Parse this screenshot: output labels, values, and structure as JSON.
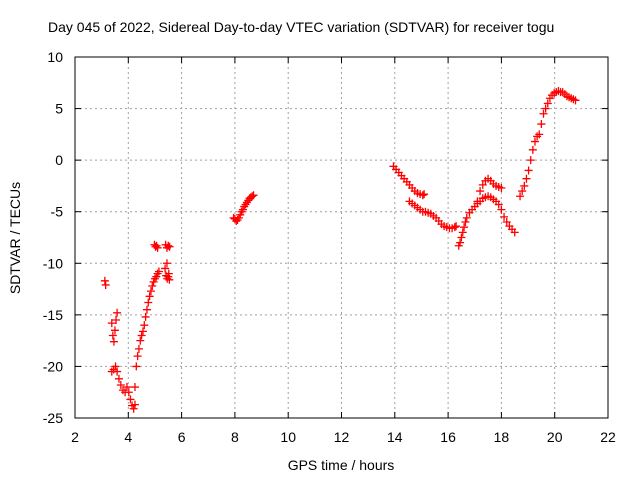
{
  "chart_data": {
    "type": "scatter",
    "title": "Day 045 of 2022, Sidereal Day-to-day VTEC variation (SDTVAR) for receiver togu",
    "xlabel": "GPS time / hours",
    "ylabel": "SDTVAR / TECUs",
    "xlim": [
      2,
      22
    ],
    "ylim": [
      -25,
      10
    ],
    "xticks": [
      2,
      4,
      6,
      8,
      10,
      12,
      14,
      16,
      18,
      20,
      22
    ],
    "yticks": [
      10,
      5,
      0,
      -5,
      -10,
      -15,
      -20,
      -25
    ],
    "grid": true,
    "marker": "plus",
    "color": "#ff0000",
    "segments": [
      {
        "name": "seg1",
        "x": [
          3.12,
          3.15
        ],
        "y": [
          -11.7,
          -12.1
        ]
      },
      {
        "name": "seg2",
        "x": [
          3.38,
          3.42,
          3.46,
          3.5,
          3.54,
          3.58
        ],
        "y": [
          -15.8,
          -17.0,
          -17.6,
          -16.5,
          -15.5,
          -14.8
        ]
      },
      {
        "name": "seg3",
        "x": [
          3.38,
          3.45,
          3.52,
          3.58,
          3.65,
          3.72,
          3.8,
          3.88,
          3.95,
          4.02,
          4.08,
          4.14,
          4.2,
          4.25
        ],
        "y": [
          -20.5,
          -20.3,
          -20.0,
          -20.5,
          -21.2,
          -21.8,
          -22.3,
          -22.5,
          -22.0,
          -22.5,
          -23.2,
          -23.8,
          -24.1,
          -23.7
        ]
      },
      {
        "name": "seg4",
        "x": [
          4.25,
          4.3,
          4.35,
          4.4,
          4.45,
          4.5,
          4.55,
          4.6,
          4.65,
          4.7,
          4.75,
          4.8,
          4.85,
          4.9,
          4.95,
          5.0,
          5.05,
          5.1,
          5.15
        ],
        "y": [
          -22.0,
          -20.0,
          -19.0,
          -18.3,
          -17.5,
          -17.0,
          -16.6,
          -16.0,
          -15.2,
          -14.5,
          -13.8,
          -13.2,
          -12.7,
          -12.2,
          -11.8,
          -11.5,
          -11.3,
          -11.0,
          -10.8
        ]
      },
      {
        "name": "seg5",
        "x": [
          4.98,
          5.02,
          5.06,
          5.1
        ],
        "y": [
          -8.2,
          -8.4,
          -8.3,
          -8.5
        ]
      },
      {
        "name": "seg6",
        "x": [
          5.4,
          5.45,
          5.5,
          5.55,
          5.45,
          5.52
        ],
        "y": [
          -8.2,
          -8.5,
          -8.3,
          -8.4,
          -10.0,
          -11.0
        ]
      },
      {
        "name": "seg7",
        "x": [
          5.38,
          5.42,
          5.46,
          5.5,
          5.54
        ],
        "y": [
          -10.5,
          -11.2,
          -11.5,
          -11.3,
          -11.6
        ]
      },
      {
        "name": "seg8",
        "x": [
          7.95,
          8.0,
          8.05,
          8.1,
          8.15,
          8.2,
          8.25,
          8.3,
          8.35,
          8.4,
          8.45,
          8.5,
          8.55,
          8.6,
          8.65,
          8.7
        ],
        "y": [
          -5.6,
          -5.7,
          -5.9,
          -5.8,
          -5.6,
          -5.3,
          -5.0,
          -4.8,
          -4.5,
          -4.3,
          -4.1,
          -3.9,
          -3.7,
          -3.6,
          -3.5,
          -3.4
        ]
      },
      {
        "name": "seg9",
        "x": [
          13.95,
          14.05,
          14.15,
          14.25,
          14.35,
          14.45,
          14.55,
          14.65,
          14.75,
          14.85,
          14.95,
          15.05,
          15.1
        ],
        "y": [
          -0.6,
          -0.9,
          -1.2,
          -1.5,
          -1.8,
          -2.1,
          -2.4,
          -2.7,
          -3.0,
          -3.2,
          -3.3,
          -3.4,
          -3.3
        ]
      },
      {
        "name": "seg10",
        "x": [
          14.55,
          14.65,
          14.75,
          14.85,
          14.95,
          15.05,
          15.15,
          15.25,
          15.35,
          15.45,
          15.55,
          15.65,
          15.75,
          15.85,
          15.95,
          16.05,
          16.15,
          16.25,
          16.3
        ],
        "y": [
          -4.0,
          -4.2,
          -4.4,
          -4.6,
          -4.8,
          -5.0,
          -5.0,
          -5.1,
          -5.2,
          -5.4,
          -5.6,
          -5.9,
          -6.2,
          -6.4,
          -6.5,
          -6.6,
          -6.6,
          -6.5,
          -6.4
        ]
      },
      {
        "name": "seg11",
        "x": [
          16.4,
          16.45,
          16.5,
          16.55,
          16.6,
          16.65,
          16.7,
          16.8,
          16.9,
          17.0,
          17.1,
          17.2,
          17.3,
          17.4,
          17.5,
          17.6,
          17.7,
          17.8,
          17.9,
          18.0,
          18.1,
          18.2,
          18.3,
          18.4,
          18.5
        ],
        "y": [
          -8.3,
          -8.0,
          -7.5,
          -7.0,
          -6.5,
          -6.0,
          -5.6,
          -5.1,
          -4.8,
          -4.5,
          -4.2,
          -4.0,
          -3.7,
          -3.6,
          -3.5,
          -3.6,
          -3.8,
          -4.0,
          -4.3,
          -4.8,
          -5.5,
          -6.0,
          -6.4,
          -6.7,
          -7.0
        ]
      },
      {
        "name": "seg12",
        "x": [
          17.1,
          17.2,
          17.3,
          17.4,
          17.5,
          17.6,
          17.7,
          17.8,
          17.9,
          18.0
        ],
        "y": [
          -4.0,
          -3.0,
          -2.4,
          -2.0,
          -1.8,
          -2.0,
          -2.3,
          -2.5,
          -2.6,
          -2.7
        ]
      },
      {
        "name": "seg13",
        "x": [
          18.7,
          18.78,
          18.86,
          18.94,
          19.02,
          19.1,
          19.18,
          19.26,
          19.34,
          19.42,
          19.5,
          19.58,
          19.66,
          19.74,
          19.82,
          19.9,
          19.98,
          20.06,
          20.14,
          20.22,
          20.3,
          20.38,
          20.46,
          20.54,
          20.62,
          20.7,
          20.78
        ],
        "y": [
          -3.5,
          -3.0,
          -2.5,
          -1.8,
          -1.0,
          0.0,
          1.0,
          1.8,
          2.3,
          2.5,
          3.5,
          4.5,
          5.0,
          5.5,
          6.0,
          6.3,
          6.5,
          6.6,
          6.7,
          6.6,
          6.6,
          6.4,
          6.2,
          6.1,
          6.0,
          5.9,
          5.8
        ]
      }
    ]
  }
}
